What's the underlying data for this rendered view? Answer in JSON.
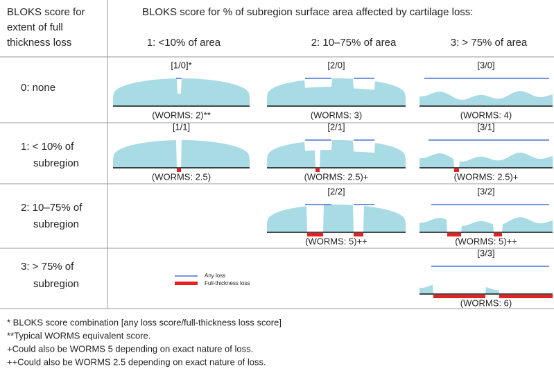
{
  "header": {
    "corner": [
      "BLOKS score for",
      "extent of full",
      "thickness loss"
    ],
    "title": "BLOKS score for % of subregion surface area affected by cartilage loss:",
    "columns": [
      "1: <10% of area",
      "2: 10–75% of area",
      "3: > 75% of area"
    ]
  },
  "rows": [
    {
      "label": [
        "0: none"
      ],
      "cells": [
        {
          "label": "[1/0]*",
          "worms": "(WORMS: 2)**"
        },
        {
          "label": "[2/0]",
          "worms": "(WORMS: 3)"
        },
        {
          "label": "[3/0]",
          "worms": "(WORMS: 4)"
        }
      ]
    },
    {
      "label": [
        "1: < 10% of",
        "subregion"
      ],
      "cells": [
        {
          "label": "[1/1]",
          "worms": "(WORMS: 2.5)"
        },
        {
          "label": "[2/1]",
          "worms": "(WORMS: 2.5)+"
        },
        {
          "label": "[3/1]",
          "worms": "(WORMS: 2.5)+"
        }
      ]
    },
    {
      "label": [
        "2: 10–75% of",
        "subregion"
      ],
      "cells": [
        null,
        {
          "label": "[2/2]",
          "worms": "(WORMS: 5)++"
        },
        {
          "label": "[3/2]",
          "worms": "(WORMS: 5)++"
        }
      ]
    },
    {
      "label": [
        "3: > 75% of",
        "subregion"
      ],
      "cells": [
        null,
        null,
        {
          "label": "[3/3]",
          "worms": "(WORMS: 6)"
        }
      ]
    }
  ],
  "legend": {
    "any_loss": "Any loss",
    "full_thickness_loss": "Full-thickness loss"
  },
  "footnotes": [
    "* BLOKS score combination [any loss score/full-thickness loss score]",
    "**Typical WORMS equivalent score.",
    "+Could also be WORMS 5  depending on exact nature of loss.",
    "++Could also be WORMS 2.5 depending on exact nature of loss."
  ]
}
